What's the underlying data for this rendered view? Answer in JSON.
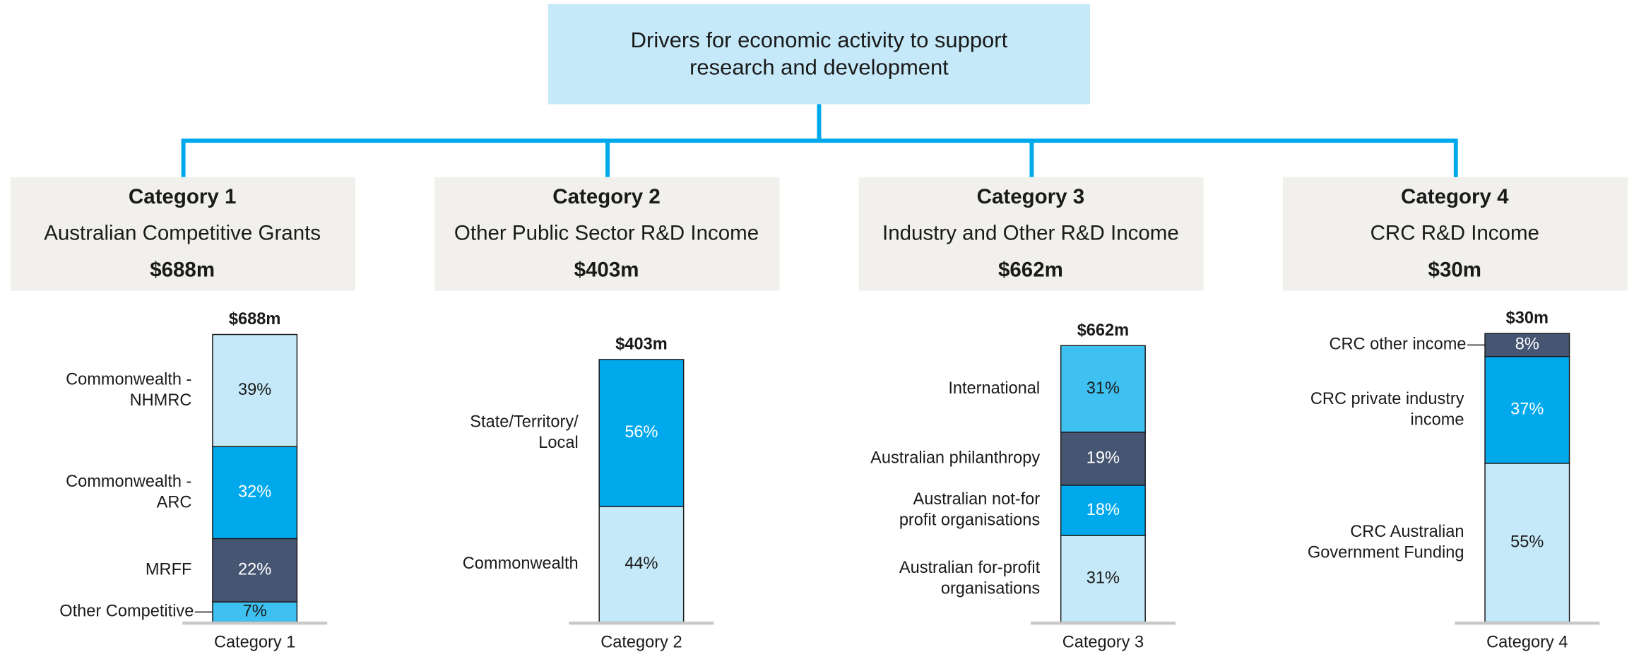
{
  "title": [
    "Drivers for economic activity to support",
    "research and development"
  ],
  "categories": [
    {
      "heading": "Category 1",
      "name": "Australian Competitive Grants",
      "total": "$688m",
      "bar": {
        "total": "$688m",
        "axis_label": "Category 1",
        "segments": [
          {
            "label": [
              "Commonwealth -",
              "NHMRC"
            ],
            "value": 39,
            "value_label": "39%",
            "color": "#c5e9f8"
          },
          {
            "label": [
              "Commonwealth -",
              "ARC"
            ],
            "value": 32,
            "value_label": "32%",
            "color": "#00a9ec"
          },
          {
            "label": [
              "MRFF"
            ],
            "value": 22,
            "value_label": "22%",
            "color": "#465672"
          },
          {
            "label": [
              "Other Competitive"
            ],
            "value": 7,
            "value_label": "7%",
            "color": "#3ec1f0"
          }
        ]
      }
    },
    {
      "heading": "Category 2",
      "name": "Other Public Sector R&D Income",
      "total": "$403m",
      "bar": {
        "total": "$403m",
        "axis_label": "Category 2",
        "segments": [
          {
            "label": [
              "State/Territory/",
              "Local"
            ],
            "value": 56,
            "value_label": "56%",
            "color": "#00a9ec"
          },
          {
            "label": [
              "Commonwealth"
            ],
            "value": 44,
            "value_label": "44%",
            "color": "#c5e9f8"
          }
        ]
      }
    },
    {
      "heading": "Category 3",
      "name": "Industry and Other R&D Income",
      "total": "$662m",
      "bar": {
        "total": "$662m",
        "axis_label": "Category 3",
        "segments": [
          {
            "label": [
              "International"
            ],
            "value": 31,
            "value_label": "31%",
            "color": "#3ec1f0"
          },
          {
            "label": [
              "Australian philanthropy"
            ],
            "value": 19,
            "value_label": "19%",
            "color": "#465672"
          },
          {
            "label": [
              "Australian not-for",
              "profit organisations"
            ],
            "value": 18,
            "value_label": "18%",
            "color": "#00a9ec"
          },
          {
            "label": [
              "Australian for-profit",
              "organisations"
            ],
            "value": 31,
            "value_label": "31%",
            "color": "#c5e9f8"
          }
        ]
      }
    },
    {
      "heading": "Category 4",
      "name": "CRC R&D Income",
      "total": "$30m",
      "bar": {
        "total": "$30m",
        "axis_label": "Category 4",
        "segments": [
          {
            "label": [
              "CRC other income"
            ],
            "value": 8,
            "value_label": "8%",
            "color": "#465672"
          },
          {
            "label": [
              "CRC private industry",
              "income"
            ],
            "value": 37,
            "value_label": "37%",
            "color": "#00a9ec"
          },
          {
            "label": [
              "CRC Australian",
              "Government Funding"
            ],
            "value": 55,
            "value_label": "55%",
            "color": "#c5e9f8"
          }
        ]
      }
    }
  ]
}
